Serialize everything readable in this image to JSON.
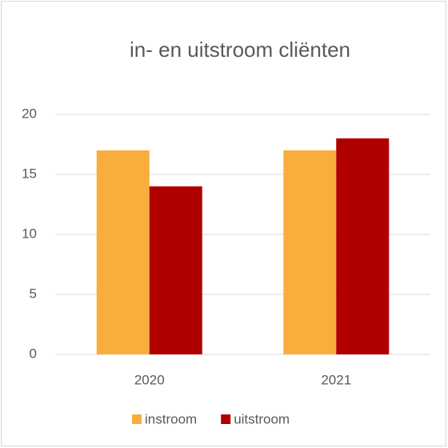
{
  "chart_data": {
    "type": "bar",
    "title": "in- en uitstroom cliënten",
    "categories": [
      "2020",
      "2021"
    ],
    "series": [
      {
        "name": "instroom",
        "color": "#f9ae3c",
        "values": [
          17,
          17
        ]
      },
      {
        "name": "uitstroom",
        "color": "#b00000",
        "values": [
          14,
          18
        ]
      }
    ],
    "ylim": [
      0,
      20
    ],
    "yticks": [
      0,
      5,
      10,
      15,
      20
    ],
    "grid": true,
    "legend": "bottom"
  }
}
